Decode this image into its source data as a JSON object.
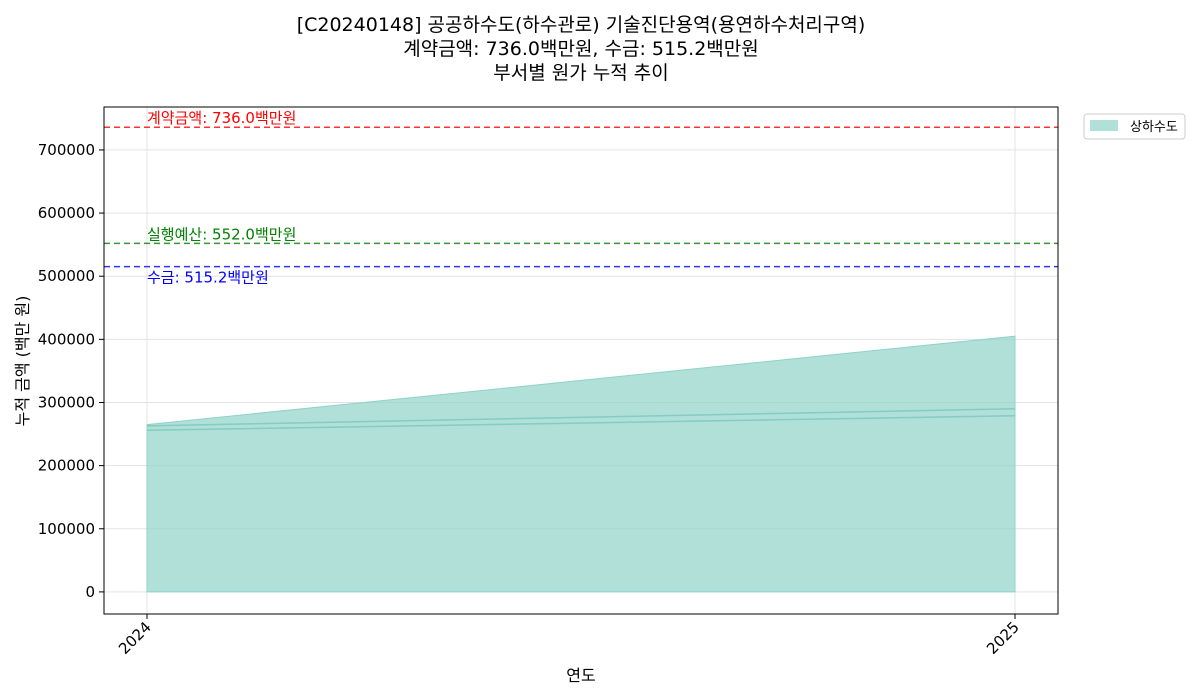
{
  "title_lines": [
    "[C20240148] 공공하수도(하수관로) 기술진단용역(용연하수처리구역)",
    "계약금액: 736.0백만원, 수금: 515.2백만원",
    "부서별 원가 누적 추이"
  ],
  "chart_data": {
    "type": "area",
    "x": [
      "2024",
      "2025"
    ],
    "series": [
      {
        "name": "상하수도",
        "values": [
          265000,
          405000
        ],
        "color": "#8fd3c7"
      }
    ],
    "inner_lines": [
      {
        "values": [
          263000,
          290000
        ]
      },
      {
        "values": [
          256000,
          279000
        ]
      }
    ],
    "xlabel": "연도",
    "ylabel": "누적 금액 (백만 원)",
    "ylim": [
      -35000,
      768000
    ],
    "yticks": [
      0,
      100000,
      200000,
      300000,
      400000,
      500000,
      600000,
      700000
    ],
    "ytick_labels": [
      "0",
      "100000",
      "200000",
      "300000",
      "400000",
      "500000",
      "600000",
      "700000"
    ],
    "grid": true,
    "legend_position": "outside-top-right",
    "reference_lines": [
      {
        "label": "계약금액: 736.0백만원",
        "value": 736000,
        "color": "#ff0000",
        "label_side": "above"
      },
      {
        "label": "실행예산: 552.0백만원",
        "value": 552000,
        "color": "#008000",
        "label_side": "above"
      },
      {
        "label": "수금: 515.2백만원",
        "value": 515200,
        "color": "#0000ff",
        "label_side": "below"
      }
    ]
  }
}
